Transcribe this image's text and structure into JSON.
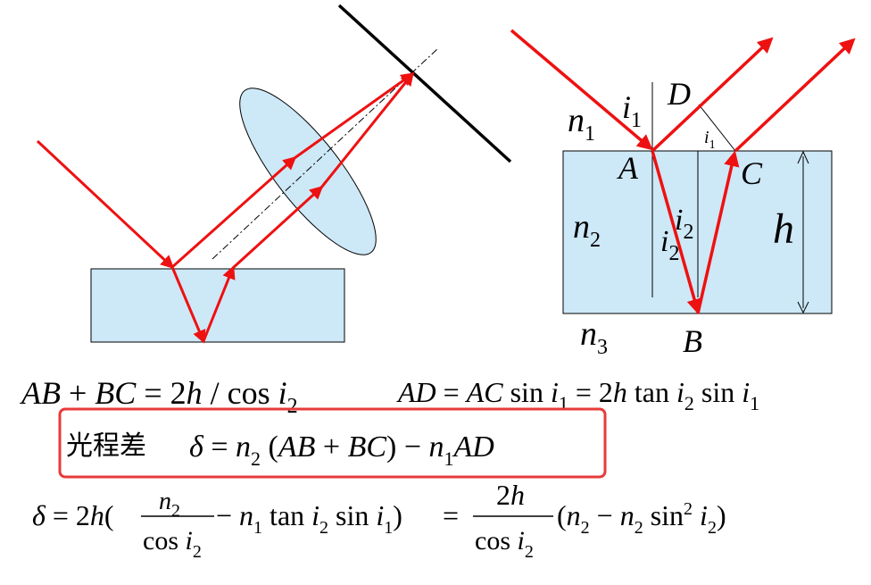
{
  "colors": {
    "ray": "#ee1111",
    "medium": "#cde8f7",
    "highlight_box": "#e83a3a",
    "ink": "#000000"
  },
  "left_figure": {},
  "right_figure": {
    "labels": {
      "n1": "n",
      "n1_sub": "1",
      "i1": "i",
      "i1_sub": "1",
      "D": "D",
      "A": "A",
      "C": "C",
      "i1_small": "i",
      "i1_small_sub": "1",
      "n2": "n",
      "n2_sub": "2",
      "i2a": "i",
      "i2a_sub": "2",
      "i2b": "i",
      "i2b_sub": "2",
      "h": "h",
      "n3": "n",
      "n3_sub": "3",
      "B": "B"
    }
  },
  "formulas": {
    "eq1": {
      "a": "AB",
      "plus": " + ",
      "b": "BC",
      "eq": " = 2",
      "h": "h",
      "slash": " / ",
      "cos": "cos",
      "i": " i",
      "sub": "2"
    },
    "eq2": {
      "ad": "AD",
      "eq1": " = ",
      "ac": "AC",
      "sin": " sin ",
      "i1": "i",
      "i1s": "1",
      "eq2": " = 2",
      "h": "h",
      "tan": " tan ",
      "i2": "i",
      "i2s": "2",
      "sin2": " sin ",
      "i3": "i",
      "i3s": "1"
    },
    "highlight": {
      "prefix": "光程差",
      "delta": "δ",
      "eq": " = ",
      "n2": "n",
      "n2s": "2",
      "open": " (",
      "ab": "AB",
      "plus": " + ",
      "bc": "BC",
      "close": ")",
      "minus": " − ",
      "n1": "n",
      "n1s": "1",
      "ad": "AD"
    },
    "eq3": {
      "delta": "δ",
      "eq": " = 2",
      "h": "h",
      "open": "(",
      "frac1_num": "n",
      "frac1_num_sub": "2",
      "frac1_den_cos": "cos ",
      "frac1_den_i": "i",
      "frac1_den_sub": "2",
      "minus": " − ",
      "n1": "n",
      "n1s": "1",
      "tan": " tan ",
      "i2": "i",
      "i2s": "2",
      "sin": " sin ",
      "i1": "i",
      "i1s": "1",
      "close": ")",
      "eq2": "=",
      "frac2_num": "2",
      "frac2_num_h": "h",
      "frac2_den_cos": "cos ",
      "frac2_den_i": "i",
      "frac2_den_sub": "2",
      "open2": "(",
      "n2a": "n",
      "n2as": "2",
      "minus2": " − ",
      "n2b": "n",
      "n2bs": "2",
      "sin2": " sin",
      "sup": "2",
      "i2b": " i",
      "i2bs": "2",
      "close2": ")"
    }
  }
}
